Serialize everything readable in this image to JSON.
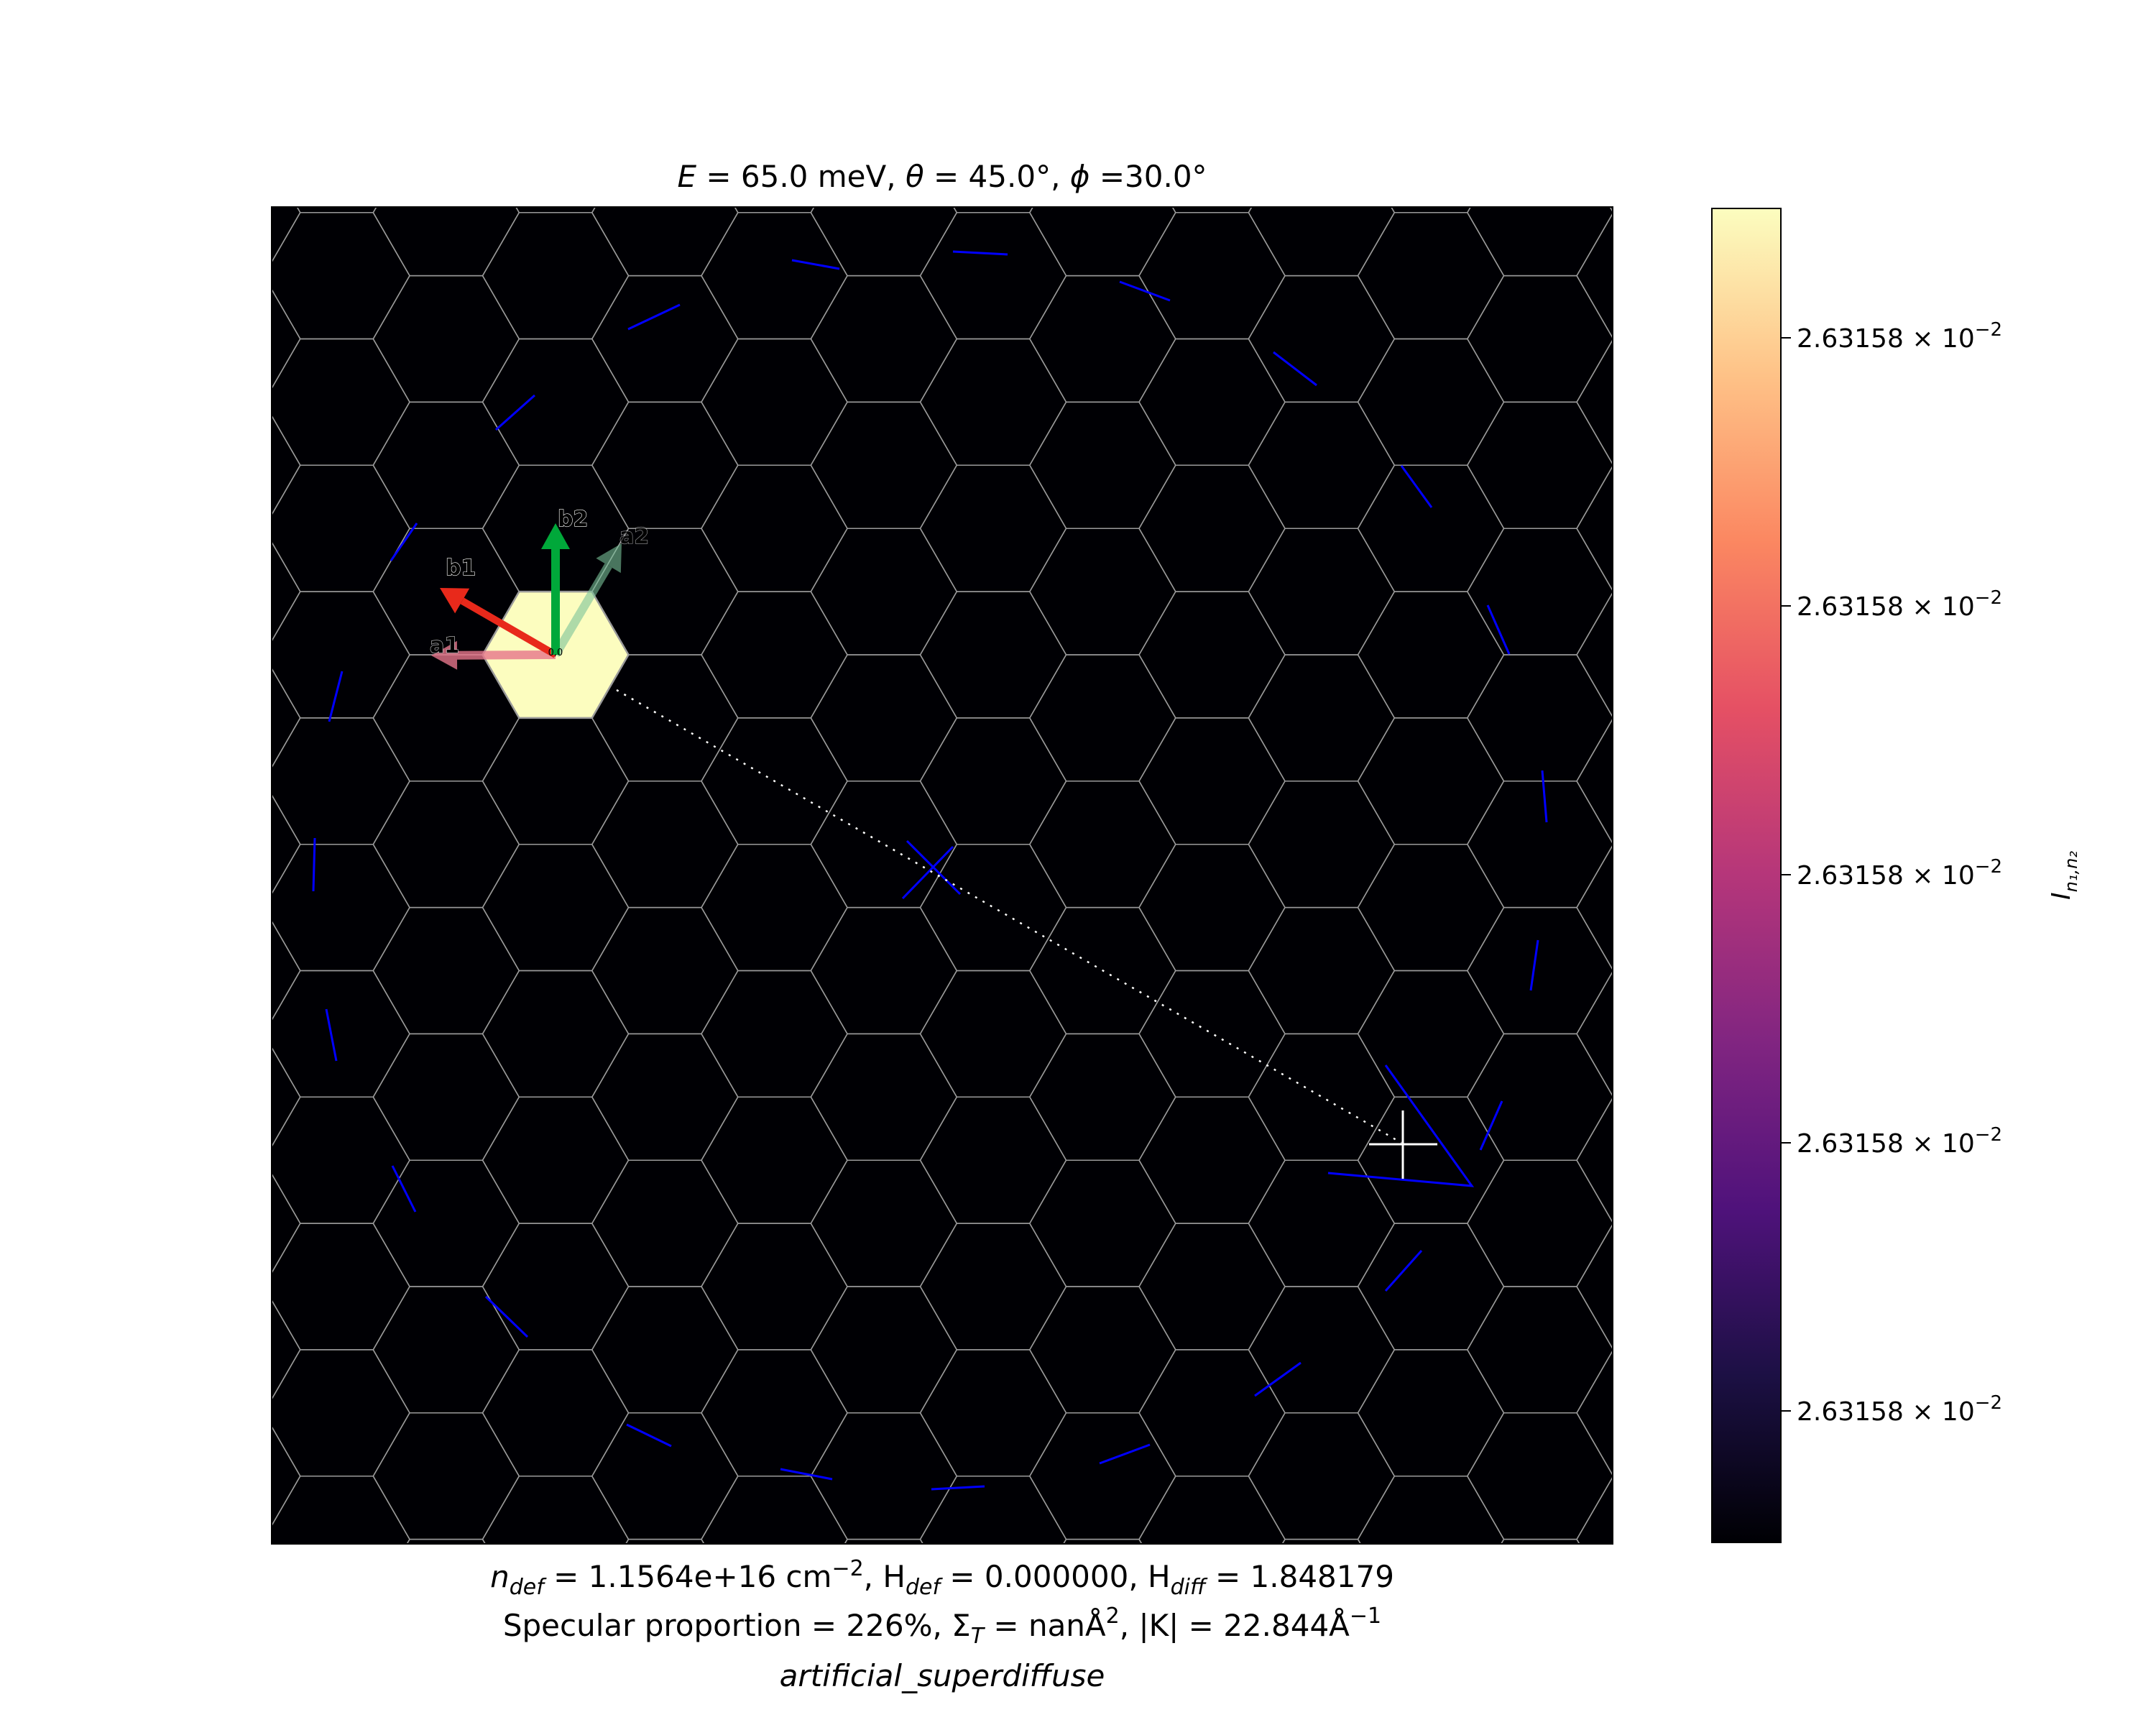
{
  "chart_data": {
    "type": "heatmap",
    "title": {
      "E_label": "E",
      "E_value": " = 65.0 meV, ",
      "theta_label": "θ",
      "theta_value": " = 45.0°, ",
      "phi_label": "ϕ",
      "phi_value": " =30.0°"
    },
    "footer": {
      "line1": {
        "n": "n",
        "n_sub": "def",
        "n_val": " = 1.1564e+16 cm",
        "n_exp": "−2",
        "h1": ", H",
        "h1_sub": "def",
        "h1_val": " = 0.000000, H",
        "h2_sub": "diff",
        "h2_val": " = 1.848179"
      },
      "line2": {
        "a": "Specular proportion = 226%, Σ",
        "sigma_sub": "T",
        "b": " = nanÅ",
        "b_exp": "2",
        "c": ", |K| = 22.844Å",
        "c_exp": "−1"
      },
      "line3": "artificial_superdiffuse"
    },
    "colorbar": {
      "label": "I",
      "label_sub": "n₁,n₂",
      "cmap": "magma",
      "ticks": [
        {
          "mantissa": "2.63158",
          "times": " × 10",
          "exp": "−2"
        },
        {
          "mantissa": "2.63158",
          "times": " × 10",
          "exp": "−2"
        },
        {
          "mantissa": "2.63158",
          "times": " × 10",
          "exp": "−2"
        },
        {
          "mantissa": "2.63158",
          "times": " × 10",
          "exp": "−2"
        },
        {
          "mantissa": "2.63158",
          "times": " × 10",
          "exp": "−2"
        }
      ],
      "stops": [
        "#000004",
        "#1c1044",
        "#4f127b",
        "#812581",
        "#b5367a",
        "#e55064",
        "#fb8761",
        "#fec287",
        "#fcfdbf"
      ]
    },
    "vectors": [
      {
        "name": "a1",
        "color": "#e7768b"
      },
      {
        "name": "a2",
        "color": "#7bc39a"
      },
      {
        "name": "b1",
        "color": "#e8291b"
      },
      {
        "name": "b2",
        "color": "#00a83a"
      }
    ],
    "origin_label": "0,0",
    "lattice": {
      "grid": true,
      "grid_color": "#9a9a9a",
      "background": "#000004",
      "highlight_color": "#fcfdbf"
    },
    "scan_color": "#0000ff"
  }
}
